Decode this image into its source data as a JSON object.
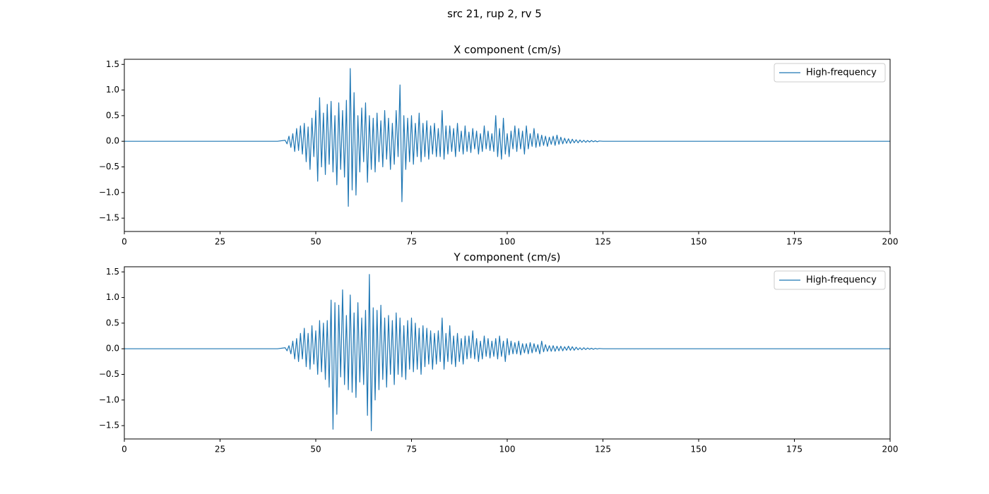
{
  "title": "src 21, rup 2, rv 5",
  "chart_data": [
    {
      "type": "line",
      "title": "X component (cm/s)",
      "legend": "upper right",
      "x": [
        0,
        40,
        42,
        42.5,
        43,
        43.5,
        44,
        44.5,
        45,
        45.5,
        46,
        46.5,
        47,
        47.5,
        48,
        48.5,
        49,
        49.5,
        50,
        50.5,
        51,
        51.5,
        52,
        52.5,
        53,
        53.5,
        54,
        54.5,
        55,
        55.5,
        56,
        56.5,
        57,
        57.5,
        58,
        58.5,
        59,
        59.5,
        60,
        60.5,
        61,
        61.5,
        62,
        62.5,
        63,
        63.5,
        64,
        64.5,
        65,
        65.5,
        66,
        66.5,
        67,
        67.5,
        68,
        68.5,
        69,
        69.5,
        70,
        70.5,
        71,
        71.5,
        72,
        72.5,
        73,
        73.5,
        74,
        74.5,
        75,
        75.5,
        76,
        76.5,
        77,
        77.5,
        78,
        78.5,
        79,
        79.5,
        80,
        80.5,
        81,
        81.5,
        82,
        82.5,
        83,
        83.5,
        84,
        84.5,
        85,
        85.5,
        86,
        86.5,
        87,
        87.5,
        88,
        88.5,
        89,
        89.5,
        90,
        90.5,
        91,
        91.5,
        92,
        92.5,
        93,
        93.5,
        94,
        94.5,
        95,
        95.5,
        96,
        96.5,
        97,
        97.5,
        98,
        98.5,
        99,
        99.5,
        100,
        100.5,
        101,
        101.5,
        102,
        102.5,
        103,
        103.5,
        104,
        104.5,
        105,
        105.5,
        106,
        106.5,
        107,
        107.5,
        108,
        108.5,
        109,
        109.5,
        110,
        110.5,
        111,
        111.5,
        112,
        112.5,
        113,
        113.5,
        114,
        114.5,
        115,
        115.5,
        116,
        116.5,
        117,
        117.5,
        118,
        118.5,
        119,
        119.5,
        120,
        120.5,
        121,
        121.5,
        122,
        122.5,
        123,
        123.5,
        124,
        125,
        200
      ],
      "series": [
        {
          "name": "High-frequency",
          "color": "#1f77b4",
          "values": [
            0,
            0,
            0.02,
            -0.05,
            0.1,
            -0.12,
            0.15,
            -0.2,
            0.25,
            -0.18,
            0.3,
            -0.25,
            0.35,
            -0.4,
            0.28,
            -0.55,
            0.45,
            -0.3,
            0.6,
            -0.78,
            0.85,
            -0.5,
            0.55,
            -0.65,
            0.72,
            -0.45,
            0.78,
            -0.6,
            0.5,
            -0.85,
            0.75,
            -0.55,
            0.6,
            -0.7,
            0.8,
            -1.27,
            1.42,
            -0.95,
            0.95,
            -1.05,
            0.5,
            -0.6,
            0.65,
            -0.4,
            0.75,
            -0.8,
            0.5,
            -0.55,
            0.45,
            -0.6,
            0.55,
            -0.4,
            0.4,
            -0.5,
            0.6,
            -0.35,
            0.45,
            -0.55,
            0.35,
            -0.45,
            0.6,
            -0.3,
            1.1,
            -1.18,
            0.5,
            -0.55,
            0.45,
            -0.4,
            0.5,
            -0.45,
            0.35,
            -0.3,
            0.55,
            -0.4,
            0.35,
            -0.3,
            0.4,
            -0.35,
            0.3,
            -0.25,
            0.35,
            -0.3,
            0.25,
            -0.3,
            0.6,
            -0.35,
            0.3,
            -0.25,
            0.3,
            -0.2,
            0.25,
            -0.3,
            0.35,
            -0.2,
            0.2,
            -0.25,
            0.3,
            -0.2,
            0.18,
            -0.22,
            0.25,
            -0.15,
            0.2,
            -0.25,
            0.15,
            -0.2,
            0.3,
            -0.15,
            0.2,
            -0.18,
            0.15,
            -0.2,
            0.5,
            -0.3,
            0.25,
            -0.35,
            0.45,
            -0.25,
            0.15,
            -0.3,
            0.2,
            -0.15,
            0.3,
            -0.2,
            0.25,
            -0.15,
            0.2,
            -0.25,
            0.3,
            -0.15,
            0.15,
            -0.1,
            0.25,
            -0.12,
            0.15,
            -0.1,
            0.12,
            -0.08,
            0.1,
            -0.1,
            0.08,
            -0.06,
            0.1,
            -0.08,
            0.12,
            -0.06,
            0.08,
            -0.05,
            0.06,
            -0.04,
            0.05,
            -0.04,
            0.04,
            -0.03,
            0.03,
            -0.03,
            0.025,
            -0.02,
            0.02,
            -0.02,
            0.015,
            -0.015,
            0.015,
            -0.01,
            0.01,
            -0.01,
            0.005,
            0,
            0
          ]
        }
      ],
      "xlim": [
        0,
        200
      ],
      "xticks": [
        0,
        25,
        50,
        75,
        100,
        125,
        150,
        175,
        200
      ],
      "ylim": [
        -1.76,
        1.6
      ],
      "yticks": [
        {
          "value": -1.5,
          "label": "−1.5"
        },
        {
          "value": -1,
          "label": "−1.0"
        },
        {
          "value": -0.5,
          "label": "−0.5"
        },
        {
          "value": 0,
          "label": "0.0"
        },
        {
          "value": 0.5,
          "label": "0.5"
        },
        {
          "value": 1,
          "label": "1.0"
        },
        {
          "value": 1.5,
          "label": "1.5"
        }
      ]
    },
    {
      "type": "line",
      "title": "Y component (cm/s)",
      "legend": "upper right",
      "x": [
        0,
        40,
        42,
        42.5,
        43,
        43.5,
        44,
        44.5,
        45,
        45.5,
        46,
        46.5,
        47,
        47.5,
        48,
        48.5,
        49,
        49.5,
        50,
        50.5,
        51,
        51.5,
        52,
        52.5,
        53,
        53.5,
        54,
        54.5,
        55,
        55.5,
        56,
        56.5,
        57,
        57.5,
        58,
        58.5,
        59,
        59.5,
        60,
        60.5,
        61,
        61.5,
        62,
        62.5,
        63,
        63.5,
        64,
        64.5,
        65,
        65.5,
        66,
        66.5,
        67,
        67.5,
        68,
        68.5,
        69,
        69.5,
        70,
        70.5,
        71,
        71.5,
        72,
        72.5,
        73,
        73.5,
        74,
        74.5,
        75,
        75.5,
        76,
        76.5,
        77,
        77.5,
        78,
        78.5,
        79,
        79.5,
        80,
        80.5,
        81,
        81.5,
        82,
        82.5,
        83,
        83.5,
        84,
        84.5,
        85,
        85.5,
        86,
        86.5,
        87,
        87.5,
        88,
        88.5,
        89,
        89.5,
        90,
        90.5,
        91,
        91.5,
        92,
        92.5,
        93,
        93.5,
        94,
        94.5,
        95,
        95.5,
        96,
        96.5,
        97,
        97.5,
        98,
        98.5,
        99,
        99.5,
        100,
        100.5,
        101,
        101.5,
        102,
        102.5,
        103,
        103.5,
        104,
        104.5,
        105,
        105.5,
        106,
        106.5,
        107,
        107.5,
        108,
        108.5,
        109,
        109.5,
        110,
        110.5,
        111,
        111.5,
        112,
        112.5,
        113,
        113.5,
        114,
        114.5,
        115,
        115.5,
        116,
        116.5,
        117,
        117.5,
        118,
        118.5,
        119,
        119.5,
        120,
        120.5,
        121,
        121.5,
        122,
        122.5,
        123,
        123.5,
        124,
        125,
        200
      ],
      "series": [
        {
          "name": "High-frequency",
          "color": "#1f77b4",
          "values": [
            0,
            0,
            0.02,
            -0.04,
            0.06,
            -0.1,
            0.15,
            -0.2,
            0.2,
            -0.25,
            0.3,
            -0.2,
            0.4,
            -0.35,
            0.3,
            -0.4,
            0.45,
            -0.3,
            0.35,
            -0.5,
            0.55,
            -0.45,
            0.5,
            -0.6,
            0.55,
            -0.75,
            0.95,
            -1.57,
            0.9,
            -1.28,
            0.85,
            -0.55,
            1.15,
            -0.7,
            0.65,
            -0.8,
            1.05,
            -0.85,
            0.7,
            -0.95,
            0.9,
            -0.65,
            0.6,
            -0.7,
            0.75,
            -1.3,
            1.45,
            -1.6,
            0.8,
            -1.0,
            0.75,
            -0.8,
            0.85,
            -0.6,
            0.6,
            -0.75,
            0.65,
            -0.5,
            0.55,
            -0.7,
            0.7,
            -0.5,
            0.6,
            -0.55,
            0.45,
            -0.6,
            0.55,
            -0.4,
            0.6,
            -0.45,
            0.5,
            -0.4,
            0.4,
            -0.5,
            0.45,
            -0.35,
            0.4,
            -0.3,
            0.35,
            -0.4,
            0.3,
            -0.3,
            0.35,
            -0.25,
            0.6,
            -0.4,
            0.3,
            -0.25,
            0.45,
            -0.3,
            0.25,
            -0.35,
            0.3,
            -0.25,
            0.2,
            -0.3,
            0.25,
            -0.2,
            0.25,
            -0.18,
            0.35,
            -0.2,
            0.2,
            -0.25,
            0.15,
            -0.2,
            0.25,
            -0.15,
            0.2,
            -0.18,
            0.15,
            -0.15,
            0.2,
            -0.2,
            0.25,
            -0.15,
            0.15,
            -0.25,
            0.2,
            -0.12,
            0.15,
            -0.1,
            0.12,
            -0.1,
            0.15,
            -0.12,
            0.1,
            -0.08,
            0.1,
            -0.1,
            0.12,
            -0.08,
            0.1,
            -0.06,
            0.08,
            -0.1,
            0.15,
            -0.06,
            0.08,
            -0.05,
            0.06,
            -0.05,
            0.06,
            -0.05,
            0.05,
            -0.04,
            0.05,
            -0.04,
            0.04,
            -0.03,
            0.05,
            -0.03,
            0.04,
            -0.03,
            0.03,
            -0.02,
            0.02,
            -0.02,
            0.02,
            -0.015,
            0.015,
            -0.01,
            0.01,
            -0.01,
            0.008,
            -0.005,
            0.005,
            0,
            0
          ]
        }
      ],
      "xlim": [
        0,
        200
      ],
      "xticks": [
        0,
        25,
        50,
        75,
        100,
        125,
        150,
        175,
        200
      ],
      "ylim": [
        -1.76,
        1.6
      ],
      "yticks": [
        {
          "value": -1.5,
          "label": "−1.5"
        },
        {
          "value": -1,
          "label": "−1.0"
        },
        {
          "value": -0.5,
          "label": "−0.5"
        },
        {
          "value": 0,
          "label": "0.0"
        },
        {
          "value": 0.5,
          "label": "0.5"
        },
        {
          "value": 1,
          "label": "1.0"
        },
        {
          "value": 1.5,
          "label": "1.5"
        }
      ]
    }
  ]
}
